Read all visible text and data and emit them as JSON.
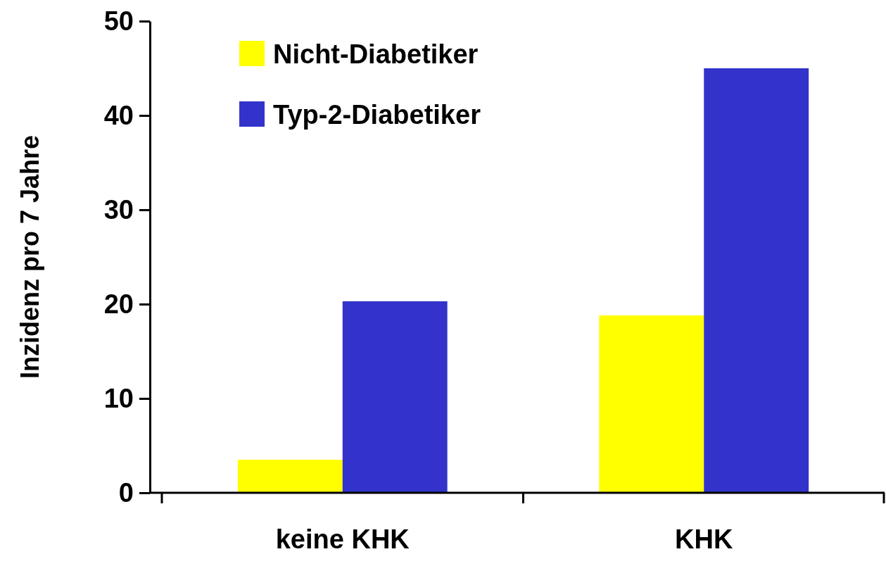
{
  "chart_data": {
    "type": "bar",
    "ylabel": "Inzidenz pro 7 Jahre",
    "categories": [
      "keine KHK",
      "KHK"
    ],
    "series": [
      {
        "name": "Nicht-Diabetiker",
        "color": "#ffff00",
        "values": [
          3.5,
          18.8
        ]
      },
      {
        "name": "Typ-2-Diabetiker",
        "color": "#3333cc",
        "values": [
          20.3,
          45
        ]
      }
    ],
    "ylim": [
      0,
      50
    ],
    "yticks": [
      0,
      10,
      20,
      30,
      40,
      50
    ],
    "legend": "top left",
    "grid": false
  }
}
